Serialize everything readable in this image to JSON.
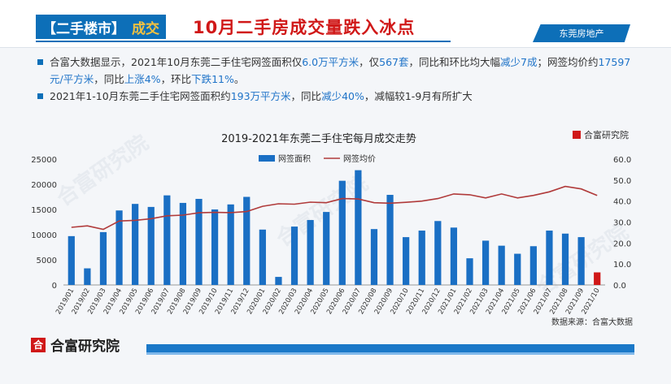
{
  "header": {
    "tag_part1": "【二手楼市】",
    "tag_part2": "成交",
    "title": "10月二手房成交量跌入冰点",
    "brand": "东莞房地产"
  },
  "bullets": [
    {
      "t1": "合富大数据显示，2021年10月东莞二手住宅网签面积仅",
      "h1": "6.0万平方米",
      "t2": "，仅",
      "h2": "567套",
      "t3": "，同比和环比均大幅",
      "h3": "减少7成",
      "t4": "；网签均价约",
      "h4": "17597元/平方米",
      "t5": "，同比",
      "h5": "上涨4%",
      "t6": "，环比",
      "h6": "下跌11%",
      "t7": "。"
    },
    {
      "t1": "2021年1-10月东莞二手住宅网签面积约",
      "h1": "193万平方米",
      "t2": "，同比",
      "h2": "减少40%",
      "t3": "，减幅较1-9月有所扩大"
    }
  ],
  "chart_data": {
    "type": "bar",
    "title": "2019-2021年东莞二手住宅每月成交走势",
    "source_logo": "合富研究院",
    "source_note": "数据来源：合富大数据",
    "categories": [
      "2019/01",
      "2019/02",
      "2019/03",
      "2019/04",
      "2019/05",
      "2019/06",
      "2019/07",
      "2019/08",
      "2019/09",
      "2019/10",
      "2019/11",
      "2019/12",
      "2020/01",
      "2020/02",
      "2020/03",
      "2020/04",
      "2020/05",
      "2020/06",
      "2020/07",
      "2020/08",
      "2020/09",
      "2020/10",
      "2020/11",
      "2020/12",
      "2021/01",
      "2021/02",
      "2021/03",
      "2021/04",
      "2021/05",
      "2021/06",
      "2021/07",
      "2021/08",
      "2021/09",
      "2021/10"
    ],
    "series": [
      {
        "name": "网签面积",
        "axis": "left",
        "type": "bar",
        "color": "#1a6fc4",
        "highlight_last": "#d01818",
        "values": [
          9700,
          3300,
          10500,
          14800,
          16100,
          15500,
          17800,
          16300,
          17100,
          15000,
          16000,
          17500,
          11000,
          1600,
          11600,
          12900,
          14500,
          20700,
          22800,
          11100,
          17900,
          9500,
          10800,
          12700,
          11400,
          5300,
          8800,
          7800,
          6200,
          7700,
          10800,
          10200,
          9500,
          2500
        ]
      },
      {
        "name": "网签均价",
        "axis": "right",
        "type": "line",
        "color": "#b03a3a",
        "values": [
          27.5,
          28.2,
          26.5,
          30.5,
          30.8,
          31.6,
          33,
          33.3,
          34.4,
          34.6,
          34.5,
          35,
          37.5,
          38.7,
          38.5,
          39.5,
          39.2,
          41.2,
          41,
          39.2,
          39,
          39.4,
          40,
          41.2,
          43.4,
          43,
          41.5,
          43.4,
          41.5,
          42.7,
          44.4,
          47,
          45.8,
          42.7
        ]
      }
    ],
    "y_left": {
      "min": 0,
      "max": 25000,
      "ticks": [
        "0",
        "5000",
        "10000",
        "15000",
        "20000",
        "25000"
      ]
    },
    "y_right": {
      "min": 0,
      "max": 60,
      "ticks": [
        "0.0",
        "10.0",
        "20.0",
        "30.0",
        "40.0",
        "50.0",
        "60.0"
      ]
    },
    "grid": false,
    "legend": "top-center"
  },
  "footer": {
    "logo": "合富研究院",
    "logo_mark": "合"
  },
  "colors": {
    "accent": "#0d6fb8",
    "highlight": "#d01818",
    "tag_text": "#f3c140"
  }
}
